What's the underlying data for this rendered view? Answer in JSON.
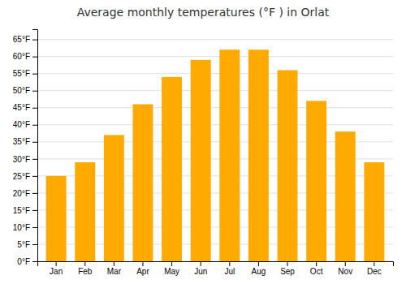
{
  "chart_data": {
    "type": "bar",
    "title": "Average monthly temperatures (°F ) in Orlat",
    "categories": [
      "Jan",
      "Feb",
      "Mar",
      "Apr",
      "May",
      "Jun",
      "Jul",
      "Aug",
      "Sep",
      "Oct",
      "Nov",
      "Dec"
    ],
    "values": [
      25,
      29,
      37,
      46,
      54,
      59,
      62,
      62,
      56,
      47,
      38,
      29
    ],
    "color": "#FFAA00",
    "ylim": [
      0,
      68
    ],
    "yticks": [
      {
        "value": 0,
        "label": "0°F"
      },
      {
        "value": 5,
        "label": "5°F"
      },
      {
        "value": 10,
        "label": "10°F"
      },
      {
        "value": 15,
        "label": "15°F"
      },
      {
        "value": 20,
        "label": "20°F"
      },
      {
        "value": 25,
        "label": "25°F"
      },
      {
        "value": 30,
        "label": "30°F"
      },
      {
        "value": 35,
        "label": "35°F"
      },
      {
        "value": 40,
        "label": "40°F"
      },
      {
        "value": 45,
        "label": "45°F"
      },
      {
        "value": 50,
        "label": "50°F"
      },
      {
        "value": 55,
        "label": "55°F"
      },
      {
        "value": 60,
        "label": "60°F"
      },
      {
        "value": 65,
        "label": "65°F"
      }
    ],
    "grid": true
  }
}
